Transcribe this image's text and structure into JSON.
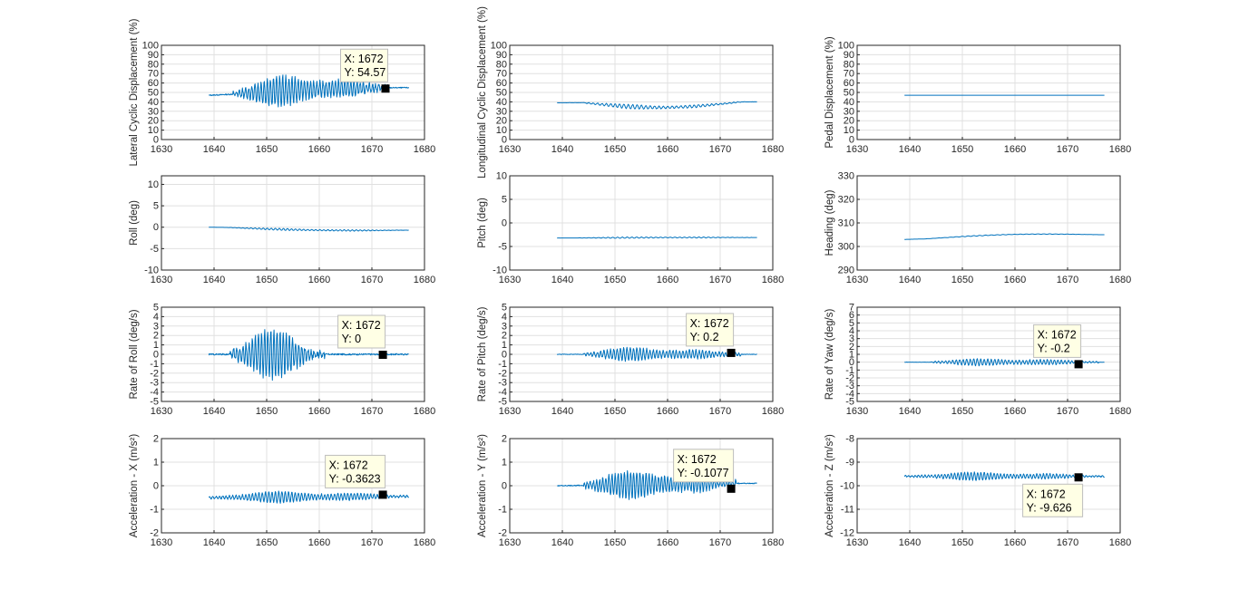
{
  "chart_data": [
    {
      "type": "line",
      "ylabel": "Lateral Cyclic Displacement (%)",
      "xlim": [
        1630,
        1680
      ],
      "ylim": [
        0,
        100
      ],
      "xticks": [
        1630,
        1640,
        1650,
        1660,
        1670,
        1680
      ],
      "yticks": [
        0,
        10,
        20,
        30,
        40,
        50,
        60,
        70,
        80,
        90,
        100
      ],
      "grid": true,
      "color": "#0072BD",
      "signal": {
        "t0": 1639,
        "t1": 1677,
        "base": 47,
        "base_end": 55,
        "active": [
          1643.5,
          1673
        ],
        "amp": 17,
        "drift": 3,
        "freq": 1.7
      },
      "datatip": {
        "x_label": "X: 1672",
        "y_label": "Y: 54.57",
        "x": 1672.5,
        "y": 54.57,
        "side": "above-left"
      }
    },
    {
      "type": "line",
      "ylabel": "Longitudinal Cyclic Displacement (%)",
      "xlim": [
        1630,
        1680
      ],
      "ylim": [
        0,
        100
      ],
      "xticks": [
        1630,
        1640,
        1650,
        1660,
        1670,
        1680
      ],
      "yticks": [
        0,
        10,
        20,
        30,
        40,
        50,
        60,
        70,
        80,
        90,
        100
      ],
      "grid": true,
      "color": "#0072BD",
      "signal": {
        "t0": 1639,
        "t1": 1677,
        "base": 39,
        "base_end": 40,
        "active": [
          1644,
          1674
        ],
        "amp": 2.5,
        "drift": -11,
        "freq": 1.2
      },
      "datatip": null
    },
    {
      "type": "line",
      "ylabel": "Pedal Displacement (%)",
      "xlim": [
        1630,
        1680
      ],
      "ylim": [
        0,
        100
      ],
      "xticks": [
        1630,
        1640,
        1650,
        1660,
        1670,
        1680
      ],
      "yticks": [
        0,
        10,
        20,
        30,
        40,
        50,
        60,
        70,
        80,
        90,
        100
      ],
      "grid": true,
      "color": "#0072BD",
      "signal": {
        "t0": 1639,
        "t1": 1677,
        "base": 47,
        "base_end": 47,
        "active": [
          1639,
          1639
        ],
        "amp": 0,
        "drift": 0,
        "freq": 1
      },
      "datatip": null
    },
    {
      "type": "line",
      "ylabel": "Roll (deg)",
      "xlim": [
        1630,
        1680
      ],
      "ylim": [
        -10,
        12
      ],
      "xticks": [
        1630,
        1640,
        1650,
        1660,
        1670,
        1680
      ],
      "yticks": [
        -10,
        -5,
        0,
        5,
        10
      ],
      "grid": true,
      "color": "#0072BD",
      "signal": {
        "t0": 1639,
        "t1": 1677,
        "base": 0,
        "base_end": -0.7,
        "active": [
          1643,
          1676
        ],
        "amp": 0.25,
        "drift": -0.6,
        "freq": 1.3
      },
      "datatip": null
    },
    {
      "type": "line",
      "ylabel": "Pitch (deg)",
      "xlim": [
        1630,
        1680
      ],
      "ylim": [
        -10,
        10
      ],
      "xticks": [
        1630,
        1640,
        1650,
        1660,
        1670,
        1680
      ],
      "yticks": [
        -10,
        -5,
        0,
        5,
        10
      ],
      "grid": true,
      "color": "#0072BD",
      "signal": {
        "t0": 1639,
        "t1": 1677,
        "base": -3.2,
        "base_end": -3.1,
        "active": [
          1643,
          1676
        ],
        "amp": 0.15,
        "drift": 0.1,
        "freq": 1.1
      },
      "datatip": null
    },
    {
      "type": "line",
      "ylabel": "Heading (deg)",
      "xlim": [
        1630,
        1680
      ],
      "ylim": [
        290,
        330
      ],
      "xticks": [
        1630,
        1640,
        1650,
        1660,
        1670,
        1680
      ],
      "yticks": [
        290,
        300,
        310,
        320,
        330
      ],
      "grid": true,
      "color": "#0072BD",
      "signal": {
        "t0": 1639,
        "t1": 1677,
        "base": 303,
        "base_end": 305,
        "active": [
          1643,
          1676
        ],
        "amp": 0.15,
        "drift": 2,
        "freq": 0.9
      },
      "datatip": null
    },
    {
      "type": "line",
      "ylabel": "Rate of Roll (deg/s)",
      "xlim": [
        1630,
        1680
      ],
      "ylim": [
        -5,
        5
      ],
      "xticks": [
        1630,
        1640,
        1650,
        1660,
        1670,
        1680
      ],
      "yticks": [
        -5,
        -4,
        -3,
        -2,
        -1,
        0,
        1,
        2,
        3,
        4,
        5
      ],
      "grid": true,
      "color": "#0072BD",
      "signal": {
        "t0": 1639,
        "t1": 1677,
        "base": 0,
        "base_end": 0,
        "active": [
          1643,
          1661
        ],
        "amp": 2.6,
        "drift": 0,
        "freq": 1.7
      },
      "datatip": {
        "x_label": "X: 1672",
        "y_label": "Y: 0",
        "x": 1672,
        "y": 0,
        "side": "above-left"
      }
    },
    {
      "type": "line",
      "ylabel": "Rate of Pitch (deg/s)",
      "xlim": [
        1630,
        1680
      ],
      "ylim": [
        -5,
        5
      ],
      "xticks": [
        1630,
        1640,
        1650,
        1660,
        1670,
        1680
      ],
      "yticks": [
        -5,
        -4,
        -3,
        -2,
        -1,
        0,
        1,
        2,
        3,
        4,
        5
      ],
      "grid": true,
      "color": "#0072BD",
      "signal": {
        "t0": 1639,
        "t1": 1677,
        "base": 0,
        "base_end": 0,
        "active": [
          1644,
          1674
        ],
        "amp": 0.8,
        "drift": 0,
        "freq": 1.6
      },
      "datatip": {
        "x_label": "X: 1672",
        "y_label": "Y: 0.2",
        "x": 1672,
        "y": 0.2,
        "side": "above-left"
      }
    },
    {
      "type": "line",
      "ylabel": "Rate of Yaw (deg/s)",
      "xlim": [
        1630,
        1680
      ],
      "ylim": [
        -5,
        7
      ],
      "xticks": [
        1630,
        1640,
        1650,
        1660,
        1670,
        1680
      ],
      "yticks": [
        -5,
        -4,
        -3,
        -2,
        -1,
        0,
        1,
        2,
        3,
        4,
        5,
        6,
        7
      ],
      "grid": true,
      "color": "#0072BD",
      "signal": {
        "t0": 1639,
        "t1": 1677,
        "base": 0,
        "base_end": 0,
        "active": [
          1644,
          1676
        ],
        "amp": 0.5,
        "drift": 0,
        "freq": 1.5
      },
      "datatip": {
        "x_label": "X: 1672",
        "y_label": "Y: -0.2",
        "x": 1672,
        "y": -0.2,
        "side": "above-left"
      }
    },
    {
      "type": "line",
      "ylabel": "Acceleration - X (m/s²)",
      "xlim": [
        1630,
        1680
      ],
      "ylim": [
        -2,
        2
      ],
      "xticks": [
        1630,
        1640,
        1650,
        1660,
        1670,
        1680
      ],
      "yticks": [
        -2,
        -1,
        0,
        1,
        2
      ],
      "grid": true,
      "color": "#0072BD",
      "signal": {
        "t0": 1639,
        "t1": 1677,
        "base": -0.5,
        "base_end": -0.45,
        "active": [
          1639,
          1677
        ],
        "amp": 0.25,
        "drift": 0,
        "freq": 1.6
      },
      "datatip": {
        "x_label": "X: 1672",
        "y_label": "Y: -0.3623",
        "x": 1672,
        "y": -0.3623,
        "side": "above-left"
      }
    },
    {
      "type": "line",
      "ylabel": "Acceleration - Y (m/s²)",
      "xlim": [
        1630,
        1680
      ],
      "ylim": [
        -2,
        2
      ],
      "xticks": [
        1630,
        1640,
        1650,
        1660,
        1670,
        1680
      ],
      "yticks": [
        -2,
        -1,
        0,
        1,
        2
      ],
      "grid": true,
      "color": "#0072BD",
      "signal": {
        "t0": 1639,
        "t1": 1677,
        "base": 0,
        "base_end": 0.1,
        "active": [
          1644,
          1673
        ],
        "amp": 0.65,
        "drift": 0,
        "freq": 1.7
      },
      "datatip": {
        "x_label": "X: 1672",
        "y_label": "Y: -0.1077",
        "x": 1672,
        "y": -0.1077,
        "side": "above-left"
      }
    },
    {
      "type": "line",
      "ylabel": "Acceleration - Z (m/s²)",
      "xlim": [
        1630,
        1680
      ],
      "ylim": [
        -12,
        -8
      ],
      "xticks": [
        1630,
        1640,
        1650,
        1660,
        1670,
        1680
      ],
      "yticks": [
        -12,
        -11,
        -10,
        -9,
        -8
      ],
      "grid": true,
      "color": "#0072BD",
      "signal": {
        "t0": 1639,
        "t1": 1677,
        "base": -9.6,
        "base_end": -9.6,
        "active": [
          1639,
          1677
        ],
        "amp": 0.18,
        "drift": 0,
        "freq": 1.6
      },
      "datatip": {
        "x_label": "X: 1672",
        "y_label": "Y: -9.626",
        "x": 1672,
        "y": -9.626,
        "side": "below-left"
      }
    }
  ]
}
